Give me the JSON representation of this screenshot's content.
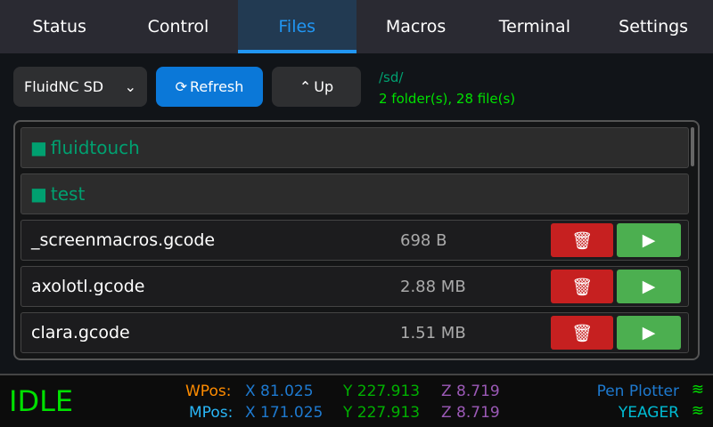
{
  "tabs": [
    "Status",
    "Control",
    "Files",
    "Macros",
    "Terminal",
    "Settings"
  ],
  "toolbar": {
    "source": "FluidNC SD",
    "refresh": "Refresh",
    "up": "Up",
    "path": "/sd/",
    "count": "2 folder(s), 28 file(s)"
  },
  "folders": [
    "fluidtouch",
    "test"
  ],
  "files": [
    {
      "name": "_screenmacros.gcode",
      "size": "698 B"
    },
    {
      "name": "axolotl.gcode",
      "size": "2.88 MB"
    },
    {
      "name": "clara.gcode",
      "size": "1.51 MB"
    }
  ],
  "footer": {
    "state": "IDLE",
    "wpos_label": "WPos:",
    "mpos_label": "MPos:",
    "wx": "X 81.025",
    "wy": "Y 227.913",
    "wz": "Z 8.719",
    "mx": "X 171.025",
    "my": "Y 227.913",
    "mz": "Z 8.719",
    "machine": "Pen Plotter",
    "network": "YEAGER"
  },
  "colors": {
    "accent": "#2196f3",
    "idle": "#00e000",
    "delete": "#c62020",
    "run": "#4caf50"
  }
}
